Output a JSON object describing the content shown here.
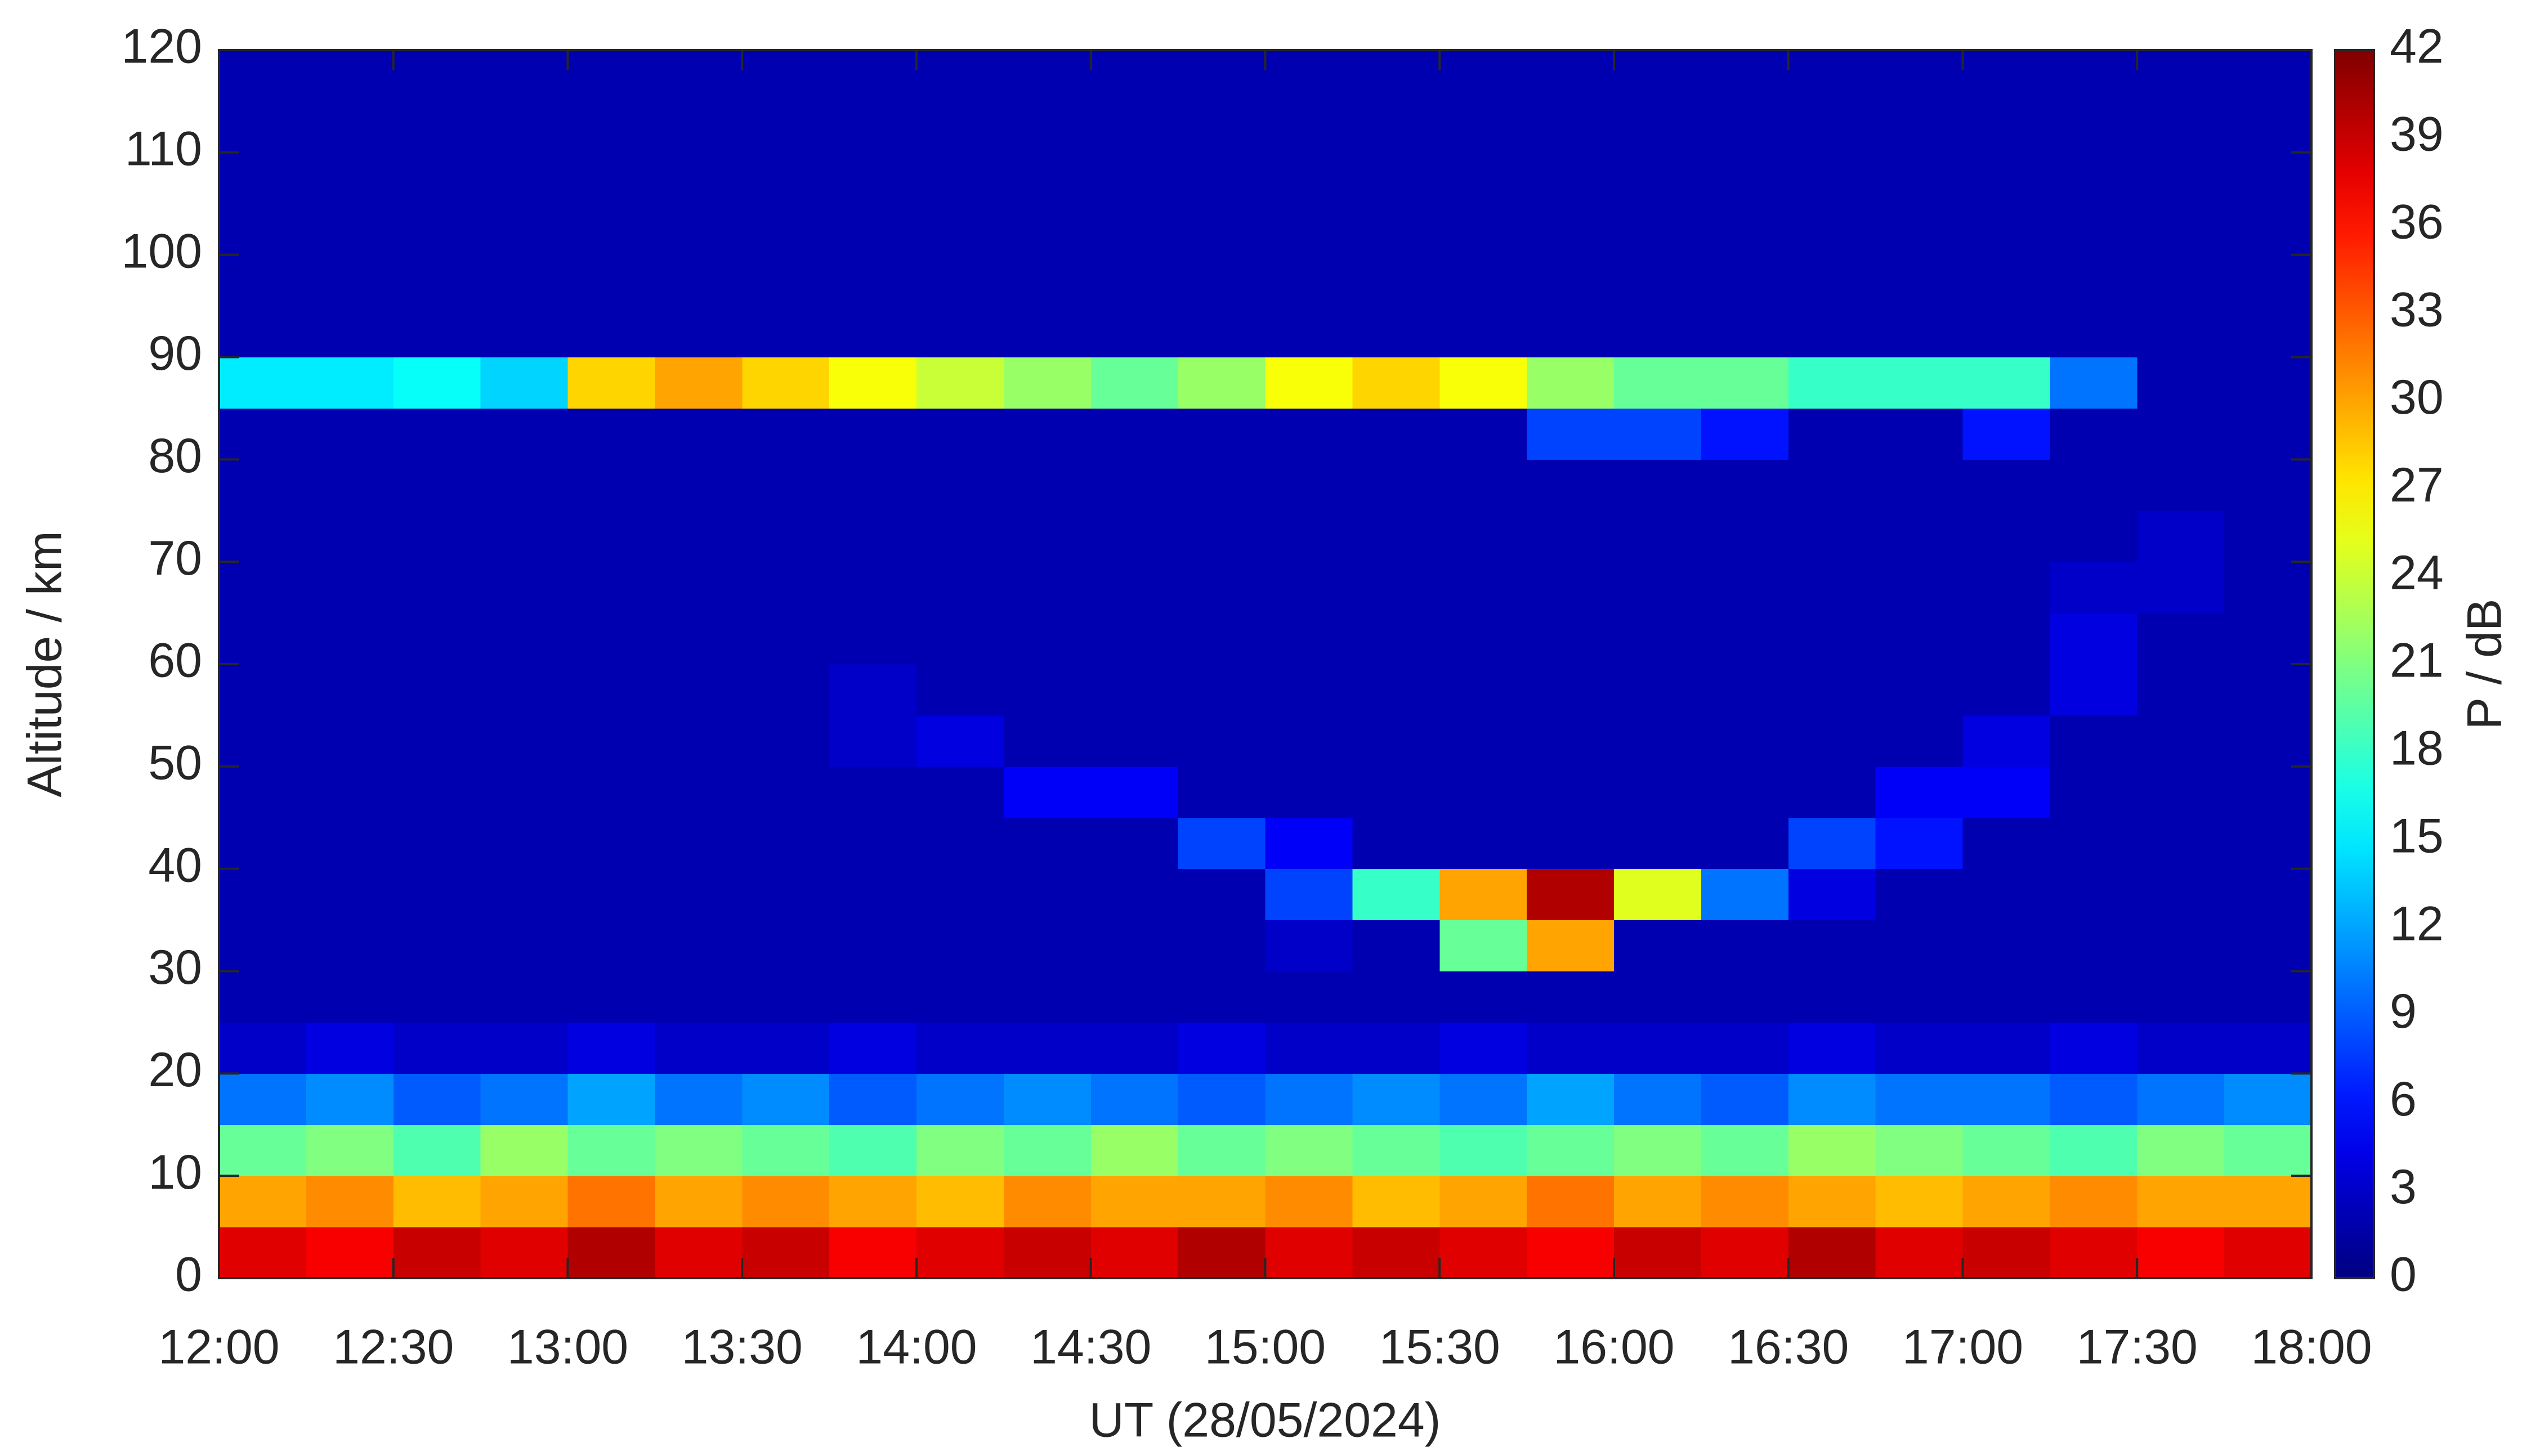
{
  "chart_data": {
    "type": "heatmap",
    "xlabel": "UT (28/05/2024)",
    "ylabel": "Altitude / km",
    "colorbar_label": "P / dB",
    "colormap": "jet",
    "xlim": [
      0,
      360
    ],
    "xticks": [
      {
        "value": 0,
        "label": "12:00"
      },
      {
        "value": 30,
        "label": "12:30"
      },
      {
        "value": 60,
        "label": "13:00"
      },
      {
        "value": 90,
        "label": "13:30"
      },
      {
        "value": 120,
        "label": "14:00"
      },
      {
        "value": 150,
        "label": "14:30"
      },
      {
        "value": 180,
        "label": "15:00"
      },
      {
        "value": 210,
        "label": "15:30"
      },
      {
        "value": 240,
        "label": "16:00"
      },
      {
        "value": 270,
        "label": "16:30"
      },
      {
        "value": 300,
        "label": "17:00"
      },
      {
        "value": 330,
        "label": "17:30"
      },
      {
        "value": 360,
        "label": "18:00"
      }
    ],
    "ylim": [
      0,
      120
    ],
    "yticks": [
      0,
      10,
      20,
      30,
      40,
      50,
      60,
      70,
      80,
      90,
      100,
      110,
      120
    ],
    "zlim": [
      0,
      42
    ],
    "zticks": [
      0,
      3,
      6,
      9,
      12,
      15,
      18,
      21,
      24,
      27,
      30,
      33,
      36,
      39,
      42
    ],
    "x": [
      0,
      15,
      30,
      45,
      60,
      75,
      90,
      105,
      120,
      135,
      150,
      165,
      180,
      195,
      210,
      225,
      240,
      255,
      270,
      285,
      300,
      315,
      330,
      345
    ],
    "y": [
      0,
      5,
      10,
      15,
      20,
      25,
      30,
      35,
      40,
      45,
      50,
      55,
      60,
      65,
      70,
      75,
      80,
      85,
      90,
      95,
      100,
      105,
      110,
      115
    ],
    "z": [
      [
        38,
        37,
        39,
        38,
        40,
        38,
        39,
        37,
        38,
        39,
        38,
        40,
        38,
        39,
        38,
        37,
        39,
        38,
        40,
        38,
        39,
        38,
        37,
        38
      ],
      [
        30,
        31,
        29,
        30,
        32,
        30,
        31,
        30,
        29,
        31,
        30,
        30,
        31,
        29,
        30,
        32,
        30,
        31,
        30,
        29,
        30,
        31,
        30,
        30
      ],
      [
        20,
        21,
        19,
        22,
        20,
        21,
        20,
        19,
        21,
        20,
        22,
        20,
        21,
        20,
        19,
        20,
        21,
        20,
        22,
        21,
        20,
        19,
        21,
        20
      ],
      [
        10,
        11,
        9,
        10,
        12,
        10,
        11,
        9,
        10,
        11,
        10,
        9,
        10,
        11,
        10,
        12,
        10,
        9,
        11,
        10,
        10,
        9,
        10,
        11
      ],
      [
        3,
        4,
        3,
        3,
        4,
        3,
        3,
        4,
        3,
        3,
        3,
        4,
        3,
        3,
        4,
        3,
        3,
        3,
        4,
        3,
        3,
        4,
        3,
        3
      ],
      [
        2,
        2,
        2,
        2,
        2,
        2,
        2,
        2,
        2,
        2,
        2,
        2,
        2,
        2,
        2,
        2,
        2,
        2,
        2,
        2,
        2,
        2,
        2,
        2
      ],
      [
        2,
        2,
        2,
        2,
        2,
        2,
        2,
        2,
        2,
        2,
        2,
        2,
        3,
        2,
        20,
        30,
        2,
        2,
        2,
        2,
        2,
        2,
        2,
        2
      ],
      [
        2,
        2,
        2,
        2,
        2,
        2,
        2,
        2,
        2,
        2,
        2,
        2,
        8,
        18,
        30,
        40,
        25,
        10,
        4,
        2,
        2,
        2,
        2,
        2
      ],
      [
        2,
        2,
        2,
        2,
        2,
        2,
        2,
        2,
        2,
        2,
        2,
        8,
        5,
        2,
        2,
        2,
        2,
        2,
        8,
        6,
        2,
        2,
        2,
        2
      ],
      [
        2,
        2,
        2,
        2,
        2,
        2,
        2,
        2,
        2,
        5,
        5,
        2,
        2,
        2,
        2,
        2,
        2,
        2,
        2,
        5,
        5,
        2,
        2,
        2
      ],
      [
        2,
        2,
        2,
        2,
        2,
        2,
        2,
        3,
        4,
        2,
        2,
        2,
        2,
        2,
        2,
        2,
        2,
        2,
        2,
        2,
        4,
        2,
        2,
        2
      ],
      [
        2,
        2,
        2,
        2,
        2,
        2,
        2,
        3,
        2,
        2,
        2,
        2,
        2,
        2,
        2,
        2,
        2,
        2,
        2,
        2,
        2,
        4,
        2,
        2
      ],
      [
        2,
        2,
        2,
        2,
        2,
        2,
        2,
        2,
        2,
        2,
        2,
        2,
        2,
        2,
        2,
        2,
        2,
        2,
        2,
        2,
        2,
        4,
        2,
        2
      ],
      [
        2,
        2,
        2,
        2,
        2,
        2,
        2,
        2,
        2,
        2,
        2,
        2,
        2,
        2,
        2,
        2,
        2,
        2,
        2,
        2,
        2,
        3,
        3,
        2
      ],
      [
        2,
        2,
        2,
        2,
        2,
        2,
        2,
        2,
        2,
        2,
        2,
        2,
        2,
        2,
        2,
        2,
        2,
        2,
        2,
        2,
        2,
        2,
        3,
        2
      ],
      [
        2,
        2,
        2,
        2,
        2,
        2,
        2,
        2,
        2,
        2,
        2,
        2,
        2,
        2,
        2,
        2,
        2,
        2,
        2,
        2,
        2,
        2,
        2,
        2
      ],
      [
        2,
        2,
        2,
        2,
        2,
        2,
        2,
        2,
        2,
        2,
        2,
        2,
        2,
        2,
        2,
        8,
        8,
        6,
        2,
        2,
        6,
        2,
        2,
        2
      ],
      [
        15,
        15,
        16,
        14,
        28,
        30,
        28,
        26,
        24,
        22,
        20,
        22,
        26,
        28,
        26,
        22,
        20,
        20,
        18,
        18,
        18,
        10,
        2,
        2
      ],
      [
        2,
        2,
        2,
        2,
        2,
        2,
        2,
        2,
        2,
        2,
        2,
        2,
        2,
        2,
        2,
        2,
        2,
        2,
        2,
        2,
        2,
        2,
        2,
        2
      ],
      [
        2,
        2,
        2,
        2,
        2,
        2,
        2,
        2,
        2,
        2,
        2,
        2,
        2,
        2,
        2,
        2,
        2,
        2,
        2,
        2,
        2,
        2,
        2,
        2
      ],
      [
        2,
        2,
        2,
        2,
        2,
        2,
        2,
        2,
        2,
        2,
        2,
        2,
        2,
        2,
        2,
        2,
        2,
        2,
        2,
        2,
        2,
        2,
        2,
        2
      ],
      [
        2,
        2,
        2,
        2,
        2,
        2,
        2,
        2,
        2,
        2,
        2,
        2,
        2,
        2,
        2,
        2,
        2,
        2,
        2,
        2,
        2,
        2,
        2,
        2
      ],
      [
        2,
        2,
        2,
        2,
        2,
        2,
        2,
        2,
        2,
        2,
        2,
        2,
        2,
        2,
        2,
        2,
        2,
        2,
        2,
        2,
        2,
        2,
        2,
        2
      ],
      [
        2,
        2,
        2,
        2,
        2,
        2,
        2,
        2,
        2,
        2,
        2,
        2,
        2,
        2,
        2,
        2,
        2,
        2,
        2,
        2,
        2,
        2,
        2,
        2
      ]
    ]
  }
}
